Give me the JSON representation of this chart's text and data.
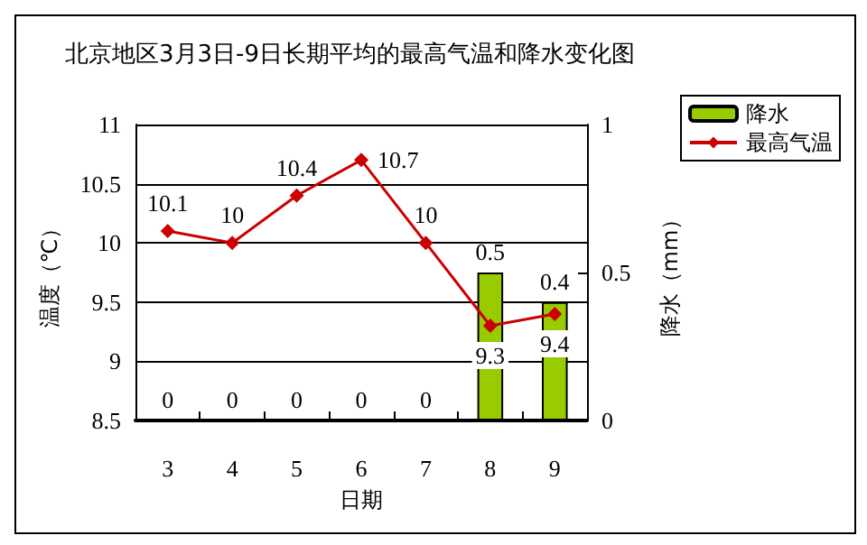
{
  "chart_data": {
    "type": "bar",
    "title": "北京地区3月3日-9日长期平均的最高气温和降水变化图",
    "xlabel": "日期",
    "ylabel": "温度（℃）",
    "y2label": "降水（mm）",
    "categories": [
      "3",
      "4",
      "5",
      "6",
      "7",
      "8",
      "9"
    ],
    "series": [
      {
        "name": "降水",
        "axis": "y2",
        "color": "#99cc00",
        "values": [
          0,
          0,
          0,
          0,
          0,
          0.5,
          0.4
        ]
      },
      {
        "name": "最高气温",
        "type": "line",
        "color": "#cc0000",
        "values": [
          10.1,
          10,
          10.4,
          10.7,
          10,
          9.3,
          9.4
        ]
      }
    ],
    "ylim": [
      8.5,
      11
    ],
    "yticks": [
      8.5,
      9,
      9.5,
      10,
      10.5,
      11
    ],
    "y2lim": [
      0,
      1
    ],
    "y2ticks": [
      0,
      0.5,
      1
    ],
    "grid": "y",
    "legend": "top right",
    "marker": "diamond",
    "line_style": "solid",
    "data_labels": true
  }
}
